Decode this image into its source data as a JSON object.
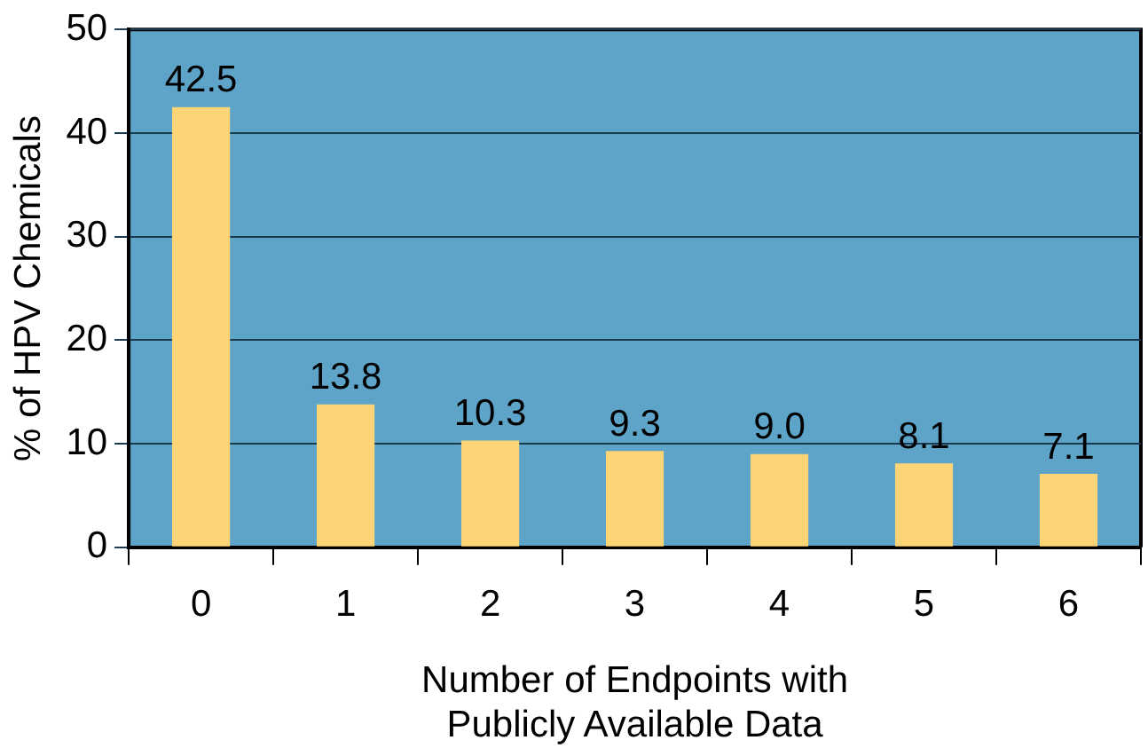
{
  "chart_data": {
    "type": "bar",
    "xlabel": "Number of Endpoints with\nPublicly Available Data",
    "ylabel": "% of HPV Chemicals",
    "categories": [
      "0",
      "1",
      "2",
      "3",
      "4",
      "5",
      "6"
    ],
    "values": [
      42.5,
      13.8,
      10.3,
      9.3,
      9.0,
      8.1,
      7.1
    ],
    "color": "#fdd577",
    "value_labels": [
      "42.5",
      "13.8",
      "10.3",
      "9.3",
      "9.0",
      "8.1",
      "7.1"
    ],
    "ylim": [
      0,
      50
    ],
    "yticks": [
      0,
      10,
      20,
      30,
      40,
      50
    ],
    "grid": "y",
    "legend": false
  }
}
